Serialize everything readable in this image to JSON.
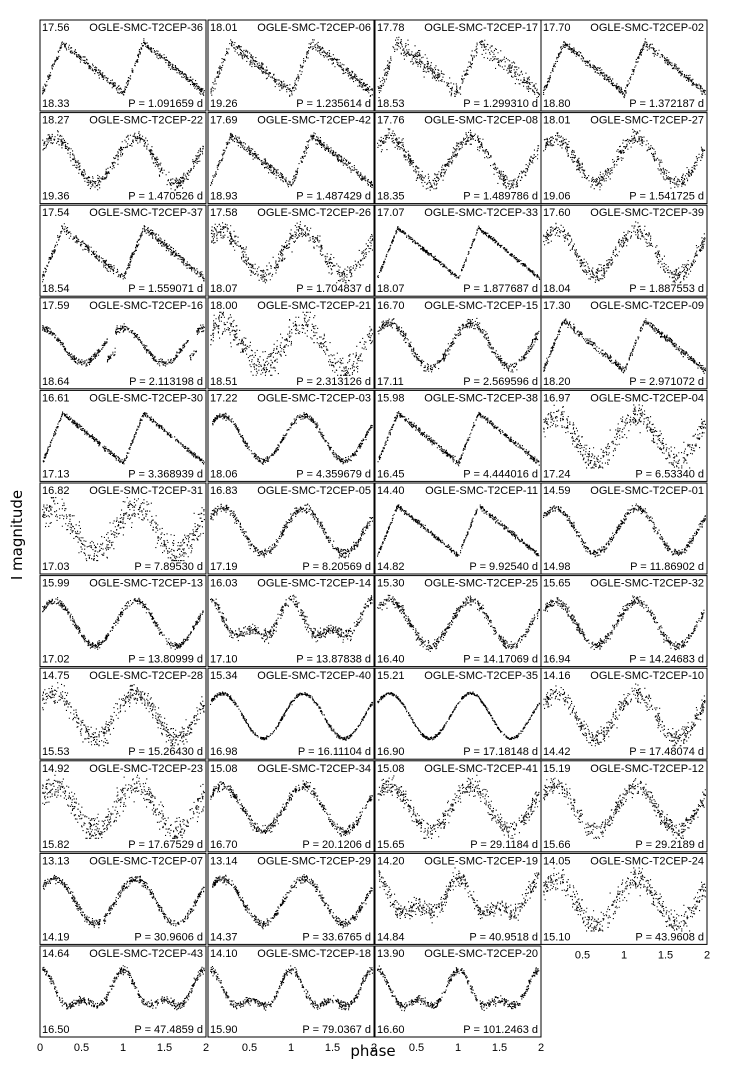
{
  "figure": {
    "xlabel": "phase",
    "ylabel": "I magnitude",
    "x_ticks": [
      "0",
      "0.5",
      "1",
      "1.5",
      "2"
    ]
  },
  "chart_data": {
    "type": "scatter",
    "x_range": [
      0,
      2
    ],
    "y_inverted": true,
    "point_color": "#000000",
    "panels": [
      {
        "name": "OGLE-SMC-T2CEP-36",
        "mag_top": "17.56",
        "mag_bottom": "18.33",
        "period": "P = 1.091659 d"
      },
      {
        "name": "OGLE-SMC-T2CEP-06",
        "mag_top": "18.01",
        "mag_bottom": "19.26",
        "period": "P = 1.235614 d"
      },
      {
        "name": "OGLE-SMC-T2CEP-17",
        "mag_top": "17.78",
        "mag_bottom": "18.53",
        "period": "P = 1.299310 d"
      },
      {
        "name": "OGLE-SMC-T2CEP-02",
        "mag_top": "17.70",
        "mag_bottom": "18.80",
        "period": "P = 1.372187 d"
      },
      {
        "name": "OGLE-SMC-T2CEP-22",
        "mag_top": "18.27",
        "mag_bottom": "19.36",
        "period": "P = 1.470526 d"
      },
      {
        "name": "OGLE-SMC-T2CEP-42",
        "mag_top": "17.69",
        "mag_bottom": "18.93",
        "period": "P = 1.487429 d"
      },
      {
        "name": "OGLE-SMC-T2CEP-08",
        "mag_top": "17.76",
        "mag_bottom": "18.35",
        "period": "P = 1.489786 d"
      },
      {
        "name": "OGLE-SMC-T2CEP-27",
        "mag_top": "18.01",
        "mag_bottom": "19.06",
        "period": "P = 1.541725 d"
      },
      {
        "name": "OGLE-SMC-T2CEP-37",
        "mag_top": "17.54",
        "mag_bottom": "18.54",
        "period": "P = 1.559071 d"
      },
      {
        "name": "OGLE-SMC-T2CEP-26",
        "mag_top": "17.58",
        "mag_bottom": "18.07",
        "period": "P = 1.704837 d"
      },
      {
        "name": "OGLE-SMC-T2CEP-33",
        "mag_top": "17.07",
        "mag_bottom": "18.07",
        "period": "P = 1.877687 d"
      },
      {
        "name": "OGLE-SMC-T2CEP-39",
        "mag_top": "17.60",
        "mag_bottom": "18.04",
        "period": "P = 1.887553 d"
      },
      {
        "name": "OGLE-SMC-T2CEP-16",
        "mag_top": "17.59",
        "mag_bottom": "18.64",
        "period": "P = 2.113198 d"
      },
      {
        "name": "OGLE-SMC-T2CEP-21",
        "mag_top": "18.00",
        "mag_bottom": "18.51",
        "period": "P = 2.313126 d"
      },
      {
        "name": "OGLE-SMC-T2CEP-15",
        "mag_top": "16.70",
        "mag_bottom": "17.11",
        "period": "P = 2.569596 d"
      },
      {
        "name": "OGLE-SMC-T2CEP-09",
        "mag_top": "17.30",
        "mag_bottom": "18.20",
        "period": "P = 2.971072 d"
      },
      {
        "name": "OGLE-SMC-T2CEP-30",
        "mag_top": "16.61",
        "mag_bottom": "17.13",
        "period": "P = 3.368939 d"
      },
      {
        "name": "OGLE-SMC-T2CEP-03",
        "mag_top": "17.22",
        "mag_bottom": "18.06",
        "period": "P = 4.359679 d"
      },
      {
        "name": "OGLE-SMC-T2CEP-38",
        "mag_top": "15.98",
        "mag_bottom": "16.45",
        "period": "P = 4.444016 d"
      },
      {
        "name": "OGLE-SMC-T2CEP-04",
        "mag_top": "16.97",
        "mag_bottom": "17.24",
        "period": "P = 6.53340 d"
      },
      {
        "name": "OGLE-SMC-T2CEP-31",
        "mag_top": "16.82",
        "mag_bottom": "17.03",
        "period": "P = 7.89530 d"
      },
      {
        "name": "OGLE-SMC-T2CEP-05",
        "mag_top": "16.83",
        "mag_bottom": "17.19",
        "period": "P = 8.20569 d"
      },
      {
        "name": "OGLE-SMC-T2CEP-11",
        "mag_top": "14.40",
        "mag_bottom": "14.82",
        "period": "P = 9.92540 d"
      },
      {
        "name": "OGLE-SMC-T2CEP-01",
        "mag_top": "14.59",
        "mag_bottom": "14.98",
        "period": "P = 11.86902 d"
      },
      {
        "name": "OGLE-SMC-T2CEP-13",
        "mag_top": "15.99",
        "mag_bottom": "17.02",
        "period": "P = 13.80999 d"
      },
      {
        "name": "OGLE-SMC-T2CEP-14",
        "mag_top": "16.03",
        "mag_bottom": "17.10",
        "period": "P = 13.87838 d"
      },
      {
        "name": "OGLE-SMC-T2CEP-25",
        "mag_top": "15.30",
        "mag_bottom": "16.40",
        "period": "P = 14.17069 d"
      },
      {
        "name": "OGLE-SMC-T2CEP-32",
        "mag_top": "15.65",
        "mag_bottom": "16.94",
        "period": "P = 14.24683 d"
      },
      {
        "name": "OGLE-SMC-T2CEP-28",
        "mag_top": "14.75",
        "mag_bottom": "15.53",
        "period": "P = 15.26430 d"
      },
      {
        "name": "OGLE-SMC-T2CEP-40",
        "mag_top": "15.34",
        "mag_bottom": "16.98",
        "period": "P = 16.11104 d"
      },
      {
        "name": "OGLE-SMC-T2CEP-35",
        "mag_top": "15.21",
        "mag_bottom": "16.90",
        "period": "P = 17.18148 d"
      },
      {
        "name": "OGLE-SMC-T2CEP-10",
        "mag_top": "14.16",
        "mag_bottom": "14.42",
        "period": "P = 17.48074 d"
      },
      {
        "name": "OGLE-SMC-T2CEP-23",
        "mag_top": "14.92",
        "mag_bottom": "15.82",
        "period": "P = 17.67529 d"
      },
      {
        "name": "OGLE-SMC-T2CEP-34",
        "mag_top": "15.08",
        "mag_bottom": "16.70",
        "period": "P = 20.1206 d"
      },
      {
        "name": "OGLE-SMC-T2CEP-41",
        "mag_top": "15.08",
        "mag_bottom": "15.65",
        "period": "P = 29.1184 d"
      },
      {
        "name": "OGLE-SMC-T2CEP-12",
        "mag_top": "15.19",
        "mag_bottom": "15.66",
        "period": "P = 29.2189 d"
      },
      {
        "name": "OGLE-SMC-T2CEP-07",
        "mag_top": "13.13",
        "mag_bottom": "14.19",
        "period": "P = 30.9606 d"
      },
      {
        "name": "OGLE-SMC-T2CEP-29",
        "mag_top": "13.14",
        "mag_bottom": "14.37",
        "period": "P = 33.6765 d"
      },
      {
        "name": "OGLE-SMC-T2CEP-19",
        "mag_top": "14.20",
        "mag_bottom": "14.84",
        "period": "P = 40.9518 d"
      },
      {
        "name": "OGLE-SMC-T2CEP-24",
        "mag_top": "14.05",
        "mag_bottom": "15.10",
        "period": "P = 43.9608 d"
      },
      {
        "name": "OGLE-SMC-T2CEP-43",
        "mag_top": "14.64",
        "mag_bottom": "16.50",
        "period": "P = 47.4859 d"
      },
      {
        "name": "OGLE-SMC-T2CEP-18",
        "mag_top": "14.10",
        "mag_bottom": "15.90",
        "period": "P = 79.0367 d"
      },
      {
        "name": "OGLE-SMC-T2CEP-20",
        "mag_top": "13.90",
        "mag_bottom": "16.60",
        "period": "P = 101.2463 d"
      }
    ]
  }
}
